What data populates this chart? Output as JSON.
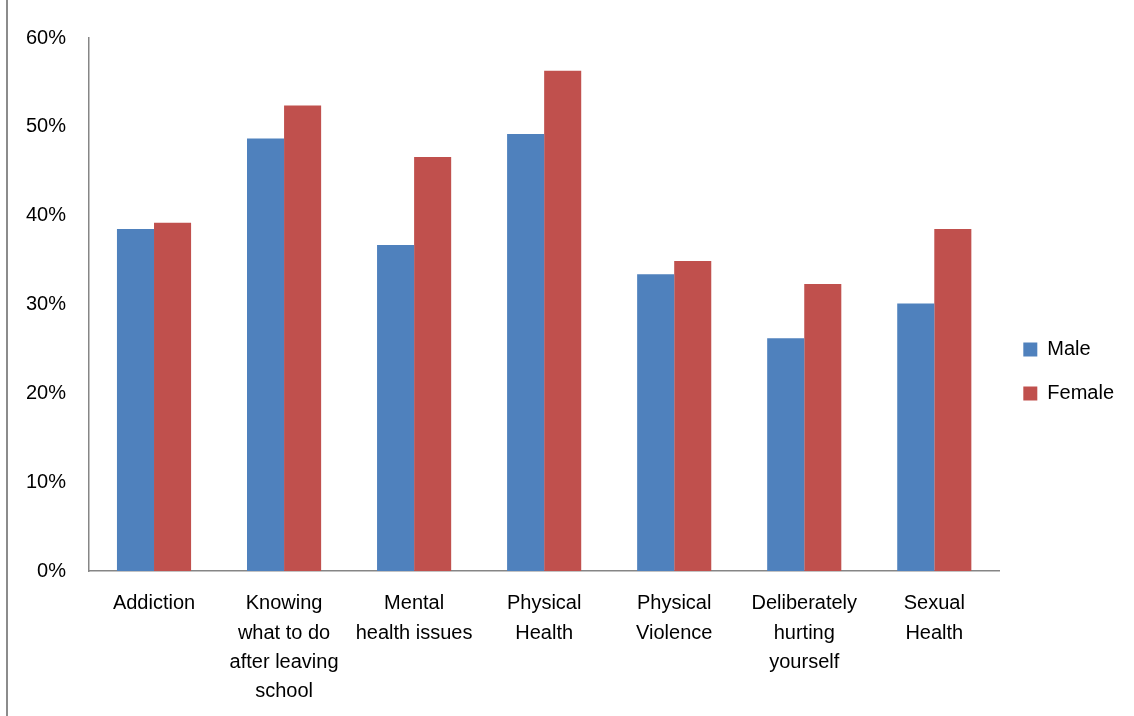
{
  "chart_data": {
    "type": "bar",
    "categories": [
      "Addiction",
      "Knowing what to do after leaving school",
      "Mental health issues",
      "Physical Health",
      "Physical Violence",
      "Deliberately hurting yourself",
      "Sexual Health"
    ],
    "series": [
      {
        "name": "Male",
        "color": "#4f81bd",
        "values": [
          38.5,
          48.7,
          36.7,
          49.2,
          33.4,
          26.2,
          30.1
        ]
      },
      {
        "name": "Female",
        "color": "#c0504d",
        "values": [
          39.2,
          52.4,
          46.6,
          56.3,
          34.9,
          32.3,
          38.5
        ]
      }
    ],
    "ylim": [
      0,
      60
    ],
    "yticks": [
      {
        "value": 0,
        "label": "0%"
      },
      {
        "value": 10,
        "label": "10%"
      },
      {
        "value": 20,
        "label": "20%"
      },
      {
        "value": 30,
        "label": "30%"
      },
      {
        "value": 40,
        "label": "40%"
      },
      {
        "value": 50,
        "label": "50%"
      },
      {
        "value": 60,
        "label": "60%"
      }
    ],
    "grid": false,
    "legend": "right"
  }
}
